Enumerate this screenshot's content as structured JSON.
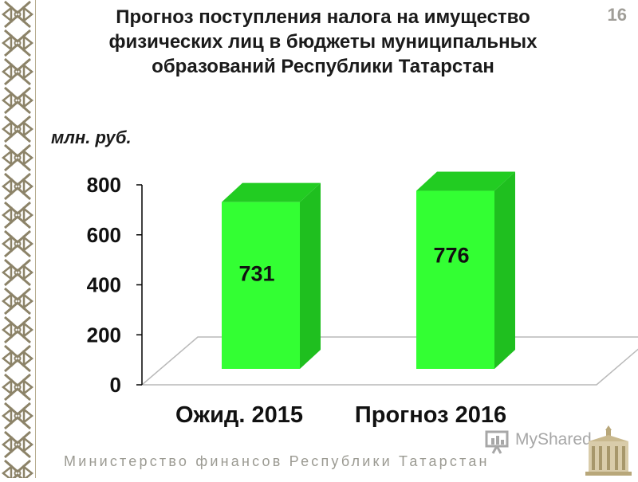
{
  "slide": {
    "title_lines": [
      "Прогноз поступления налога на имущество",
      "физических лиц в бюджеты муниципальных",
      "образований Республики Татарстан"
    ],
    "page_number": "16",
    "footer": "Министерство финансов Республики Татарстан",
    "watermark": "MyShared"
  },
  "colors": {
    "bar_front": "#33ff33",
    "bar_side": "#1fbf1f",
    "bar_top": "#22cc22",
    "floor_line": "#b9b9b9",
    "title": "#1a1a1a",
    "page_number": "#a09e98"
  },
  "chart_data": {
    "type": "bar",
    "style": "3d",
    "title": "",
    "ylabel": "млн. руб.",
    "xlabel": "",
    "categories": [
      "Ожид. 2015",
      "Прогноз 2016"
    ],
    "values": [
      731,
      776
    ],
    "data_labels": [
      "731",
      "776"
    ],
    "ylim": [
      0,
      800
    ],
    "yticks": [
      0,
      200,
      400,
      600,
      800
    ],
    "ytick_labels": [
      "0",
      "200",
      "400",
      "600",
      "800"
    ],
    "grid": false,
    "legend": "none"
  }
}
